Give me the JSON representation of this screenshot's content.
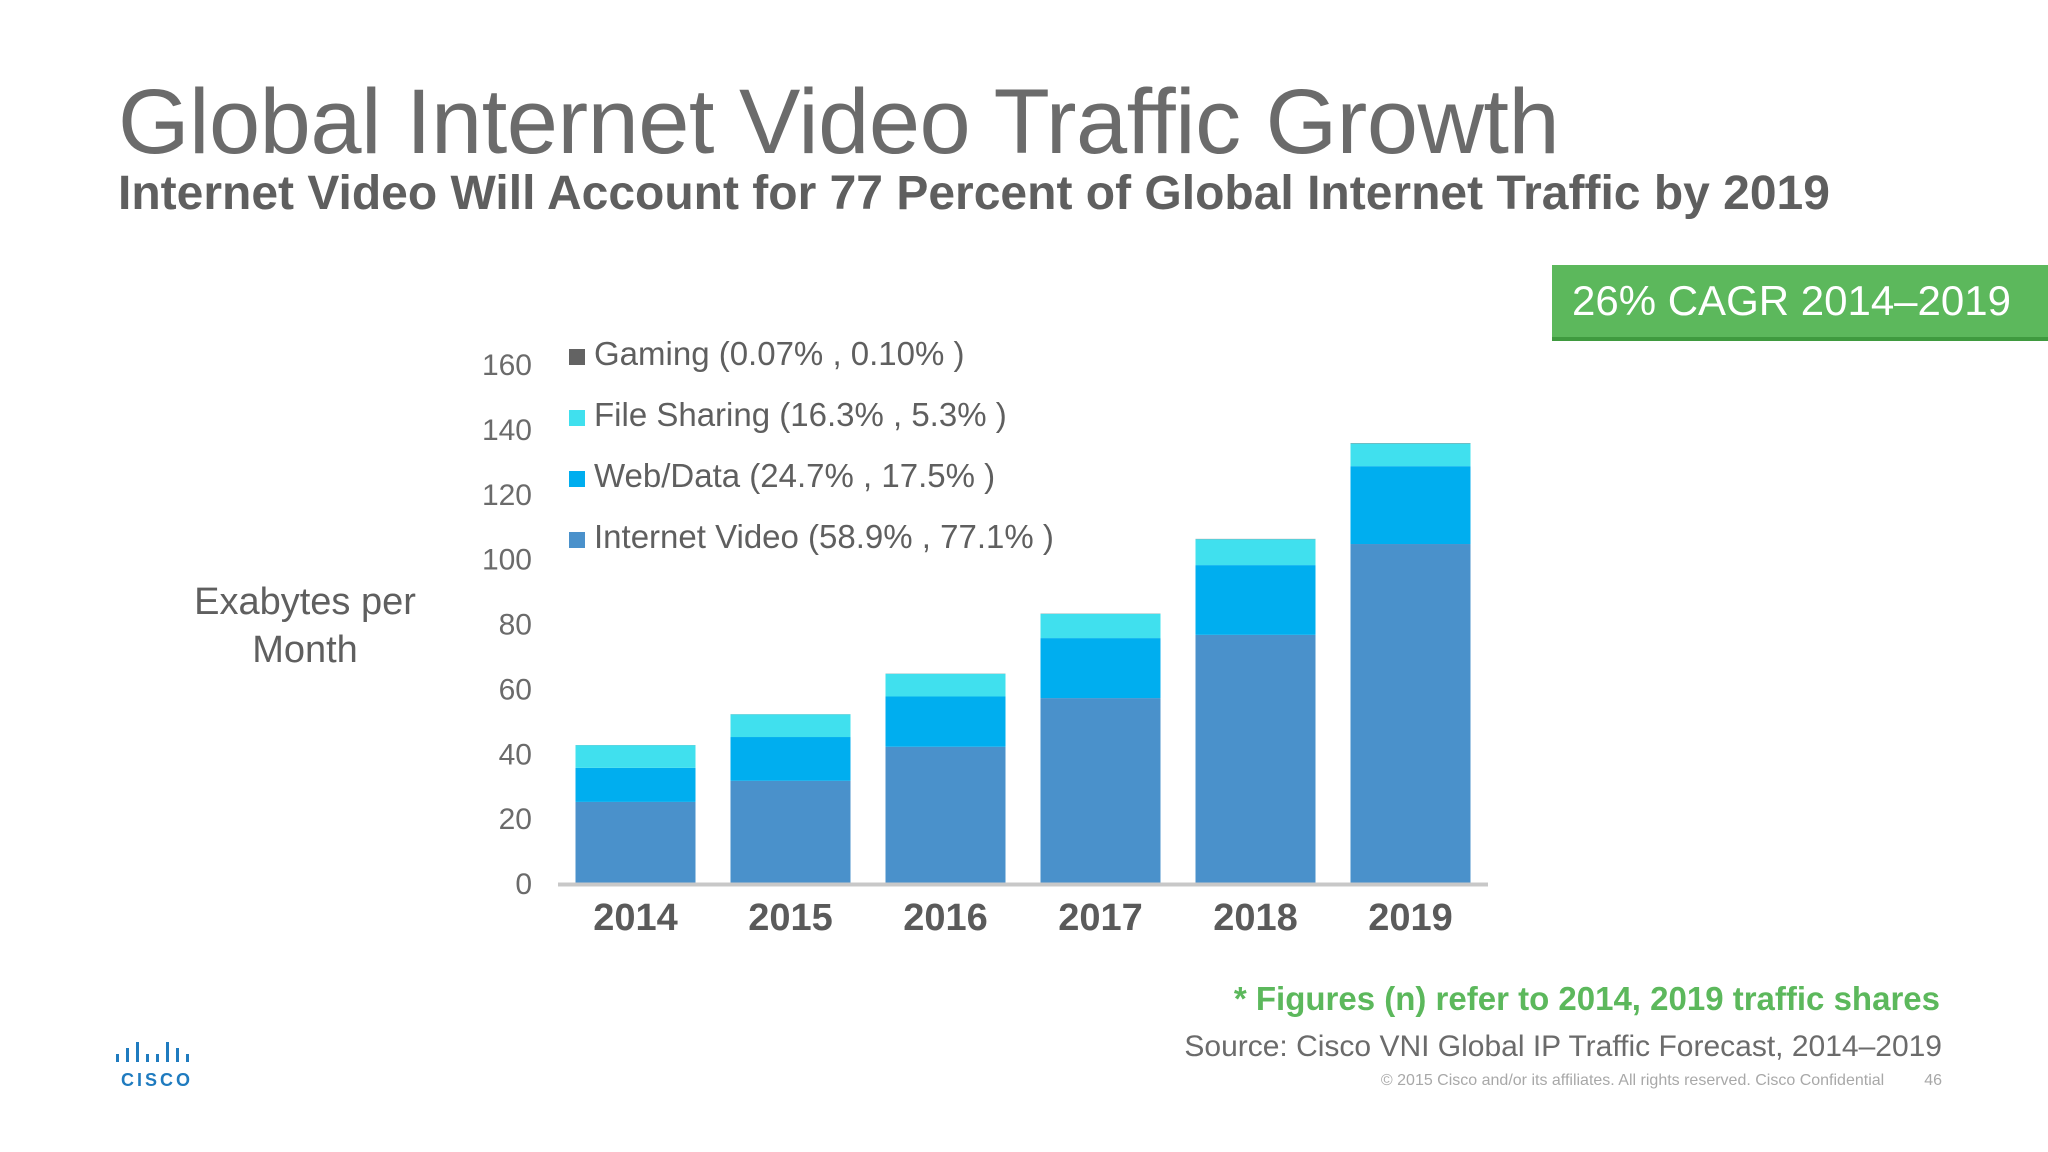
{
  "title": "Global Internet Video Traffic Growth",
  "subtitle": "Internet Video Will Account for 77 Percent of Global Internet Traffic by 2019",
  "badge": "26% CAGR 2014–2019",
  "footnote": "* Figures (n) refer to 2014, 2019 traffic shares",
  "source": "Source: Cisco VNI Global IP Traffic Forecast, 2014–2019",
  "copyright": "© 2015  Cisco and/or its affiliates. All rights reserved.   Cisco Confidential",
  "page_number": "46",
  "logo": {
    "icon": "cisco-bars-icon",
    "text": "CISCO"
  },
  "colors": {
    "gaming": "#636363",
    "file_sharing": "#40e0ee",
    "web_data": "#00aeef",
    "internet_video": "#4a91cb",
    "badge_green": "#5cb85c",
    "axis": "#c8c8c8"
  },
  "chart_data": {
    "type": "bar",
    "stacked": true,
    "categories": [
      "2014",
      "2015",
      "2016",
      "2017",
      "2018",
      "2019"
    ],
    "ylabel": "Exabytes per Month",
    "ylim": [
      0,
      160
    ],
    "yticks": [
      0,
      20,
      40,
      60,
      80,
      100,
      120,
      140,
      160
    ],
    "grid": false,
    "legend_position": "top-left",
    "series": [
      {
        "name": "Internet Video (58.9% , 77.1% )",
        "color": "#4a91cb",
        "values": [
          25,
          31.5,
          42,
          57,
          76.5,
          104.5
        ]
      },
      {
        "name": "Web/Data (24.7% , 17.5% )",
        "color": "#00aeef",
        "values": [
          10.5,
          13.5,
          15.5,
          18.5,
          21.5,
          24
        ]
      },
      {
        "name": "File Sharing (16.3% , 5.3% )",
        "color": "#40e0ee",
        "values": [
          7,
          7,
          7,
          7.5,
          8,
          7
        ]
      },
      {
        "name": "Gaming (0.07% , 0.10% )",
        "color": "#636363",
        "values": [
          0.03,
          0.04,
          0.05,
          0.06,
          0.08,
          0.1
        ]
      }
    ]
  }
}
